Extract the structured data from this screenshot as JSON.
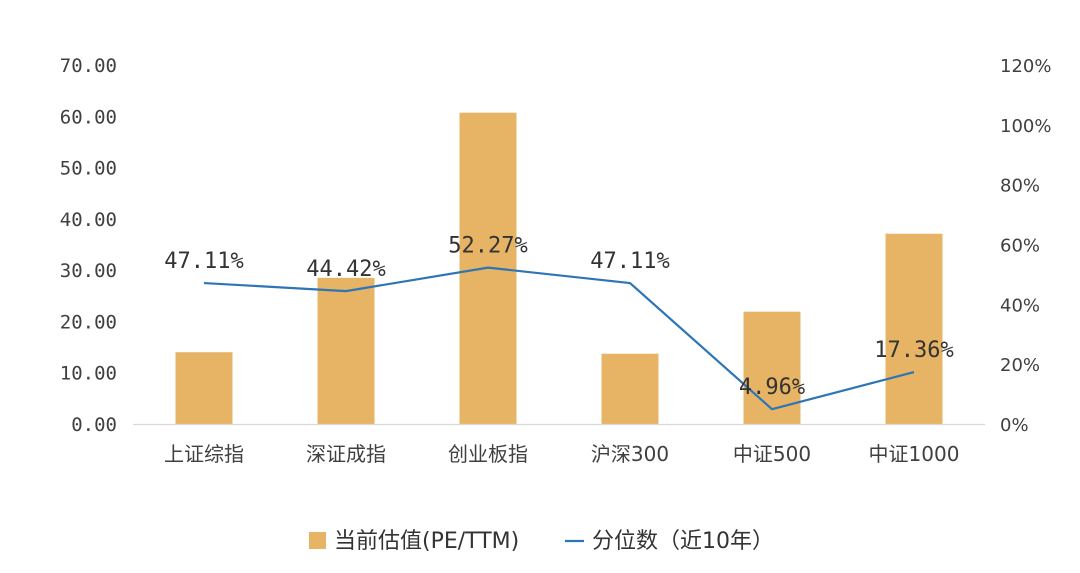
{
  "chart_data": {
    "type": "bar",
    "categories": [
      "上证综指",
      "深证成指",
      "创业板指",
      "沪深300",
      "中证500",
      "中证1000"
    ],
    "series": [
      {
        "name": "当前估值(PE/TTM)",
        "type": "bar",
        "axis": "left",
        "color": "#E6B464",
        "values": [
          14.0,
          28.5,
          60.7,
          13.7,
          21.9,
          37.1
        ]
      },
      {
        "name": "分位数（近10年）",
        "type": "line",
        "axis": "right",
        "color": "#2E75B6",
        "values": [
          47.11,
          44.42,
          52.27,
          47.11,
          4.96,
          17.36
        ],
        "labels": [
          "47.11%",
          "44.42%",
          "52.27%",
          "47.11%",
          "4.96%",
          "17.36%"
        ]
      }
    ],
    "y_left": {
      "ylim": [
        0,
        70
      ],
      "ticks": [
        "0.00",
        "10.00",
        "20.00",
        "30.00",
        "40.00",
        "50.00",
        "60.00",
        "70.00"
      ]
    },
    "y_right": {
      "ylim": [
        0,
        120
      ],
      "ticks": [
        "0%",
        "20%",
        "40%",
        "60%",
        "80%",
        "100%",
        "120%"
      ]
    },
    "grid": false,
    "legend_position": "bottom",
    "title": "",
    "xlabel": "",
    "ylabel": ""
  }
}
